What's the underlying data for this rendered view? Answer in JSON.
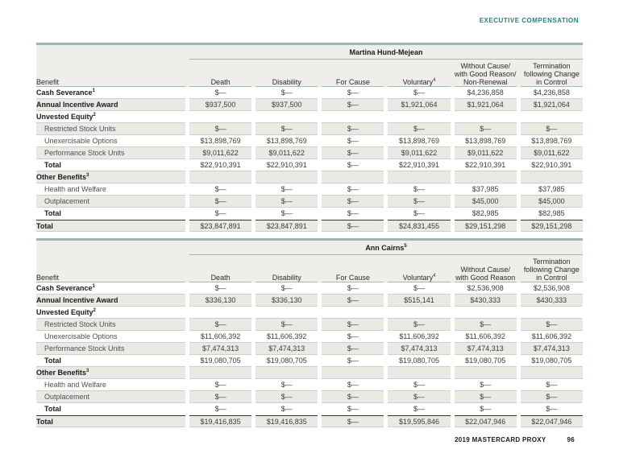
{
  "page": {
    "section_label": "EXECUTIVE COMPENSATION",
    "footer": {
      "proxy_label": "2019 MASTERCARD PROXY",
      "page_number": "96"
    }
  },
  "colors": {
    "accent_teal": "#2a7d80",
    "table_top_border": "#9bb8b5",
    "row_line": "#c0d5d2",
    "shaded_row": "#eae9e4",
    "header_background": "#efeeea"
  },
  "benefit_column_header": "Benefit",
  "tables": [
    {
      "person": "Martina Hund-Mejean",
      "person_sup": "",
      "columns": [
        {
          "lines": [
            "Death"
          ],
          "sup": ""
        },
        {
          "lines": [
            "Disability"
          ],
          "sup": ""
        },
        {
          "lines": [
            "For Cause"
          ],
          "sup": ""
        },
        {
          "lines": [
            "Voluntary"
          ],
          "sup": "4"
        },
        {
          "lines": [
            "Without Cause/",
            "with Good Reason/",
            "Non-Renewal"
          ],
          "sup": ""
        },
        {
          "lines": [
            "Termination",
            "following Change",
            "in Control"
          ],
          "sup": ""
        }
      ],
      "rows": [
        {
          "label": "Cash Severance",
          "sup": "1",
          "bold": true,
          "indent": false,
          "shaded": false,
          "grand": false,
          "values": [
            "$—",
            "$—",
            "$—",
            "$—",
            "$4,236,858",
            "$4,236,858"
          ]
        },
        {
          "label": "Annual Incentive Award",
          "sup": "",
          "bold": true,
          "indent": false,
          "shaded": true,
          "grand": false,
          "values": [
            "$937,500",
            "$937,500",
            "$—",
            "$1,921,064",
            "$1,921,064",
            "$1,921,064"
          ]
        },
        {
          "label": "Unvested Equity",
          "sup": "2",
          "bold": true,
          "indent": false,
          "shaded": false,
          "grand": false,
          "values": [
            "",
            "",
            "",
            "",
            "",
            ""
          ]
        },
        {
          "label": "Restricted Stock Units",
          "sup": "",
          "bold": false,
          "indent": true,
          "shaded": true,
          "grand": false,
          "values": [
            "$—",
            "$—",
            "$—",
            "$—",
            "$—",
            "$—"
          ]
        },
        {
          "label": "Unexercisable Options",
          "sup": "",
          "bold": false,
          "indent": true,
          "shaded": false,
          "grand": false,
          "values": [
            "$13,898,769",
            "$13,898,769",
            "$—",
            "$13,898,769",
            "$13,898,769",
            "$13,898,769"
          ]
        },
        {
          "label": "Performance Stock Units",
          "sup": "",
          "bold": false,
          "indent": true,
          "shaded": true,
          "grand": false,
          "values": [
            "$9,011,622",
            "$9,011,622",
            "$—",
            "$9,011,622",
            "$9,011,622",
            "$9,011,622"
          ]
        },
        {
          "label": "Total",
          "sup": "",
          "bold": true,
          "indent": true,
          "shaded": false,
          "grand": false,
          "values": [
            "$22,910,391",
            "$22,910,391",
            "$—",
            "$22,910,391",
            "$22,910,391",
            "$22,910,391"
          ]
        },
        {
          "label": "Other Benefits",
          "sup": "3",
          "bold": true,
          "indent": false,
          "shaded": true,
          "grand": false,
          "values": [
            "",
            "",
            "",
            "",
            "",
            ""
          ]
        },
        {
          "label": "Health and Welfare",
          "sup": "",
          "bold": false,
          "indent": true,
          "shaded": false,
          "grand": false,
          "values": [
            "$—",
            "$—",
            "$—",
            "$—",
            "$37,985",
            "$37,985"
          ]
        },
        {
          "label": "Outplacement",
          "sup": "",
          "bold": false,
          "indent": true,
          "shaded": true,
          "grand": false,
          "values": [
            "$—",
            "$—",
            "$—",
            "$—",
            "$45,000",
            "$45,000"
          ]
        },
        {
          "label": "Total",
          "sup": "",
          "bold": true,
          "indent": true,
          "shaded": false,
          "grand": false,
          "values": [
            "$—",
            "$—",
            "$—",
            "$—",
            "$82,985",
            "$82,985"
          ]
        },
        {
          "label": "Total",
          "sup": "",
          "bold": true,
          "indent": false,
          "shaded": true,
          "grand": true,
          "values": [
            "$23,847,891",
            "$23,847,891",
            "$—",
            "$24,831,455",
            "$29,151,298",
            "$29,151,298"
          ]
        }
      ]
    },
    {
      "person": "Ann Cairns",
      "person_sup": "5",
      "columns": [
        {
          "lines": [
            "Death"
          ],
          "sup": ""
        },
        {
          "lines": [
            "Disability"
          ],
          "sup": ""
        },
        {
          "lines": [
            "For Cause"
          ],
          "sup": ""
        },
        {
          "lines": [
            "Voluntary"
          ],
          "sup": "4"
        },
        {
          "lines": [
            "Without Cause/",
            "with Good Reason"
          ],
          "sup": ""
        },
        {
          "lines": [
            "Termination",
            "following Change",
            "in Control"
          ],
          "sup": ""
        }
      ],
      "rows": [
        {
          "label": "Cash Severance",
          "sup": "1",
          "bold": true,
          "indent": false,
          "shaded": false,
          "grand": false,
          "values": [
            "$—",
            "$—",
            "$—",
            "$—",
            "$2,536,908",
            "$2,536,908"
          ]
        },
        {
          "label": "Annual Incentive Award",
          "sup": "",
          "bold": true,
          "indent": false,
          "shaded": true,
          "grand": false,
          "values": [
            "$336,130",
            "$336,130",
            "$—",
            "$515,141",
            "$430,333",
            "$430,333"
          ]
        },
        {
          "label": "Unvested Equity",
          "sup": "2",
          "bold": true,
          "indent": false,
          "shaded": false,
          "grand": false,
          "values": [
            "",
            "",
            "",
            "",
            "",
            ""
          ]
        },
        {
          "label": "Restricted Stock Units",
          "sup": "",
          "bold": false,
          "indent": true,
          "shaded": true,
          "grand": false,
          "values": [
            "$—",
            "$—",
            "$—",
            "$—",
            "$—",
            "$—"
          ]
        },
        {
          "label": "Unexercisable Options",
          "sup": "",
          "bold": false,
          "indent": true,
          "shaded": false,
          "grand": false,
          "values": [
            "$11,606,392",
            "$11,606,392",
            "$—",
            "$11,606,392",
            "$11,606,392",
            "$11,606,392"
          ]
        },
        {
          "label": "Performance Stock Units",
          "sup": "",
          "bold": false,
          "indent": true,
          "shaded": true,
          "grand": false,
          "values": [
            "$7,474,313",
            "$7,474,313",
            "$—",
            "$7,474,313",
            "$7,474,313",
            "$7,474,313"
          ]
        },
        {
          "label": "Total",
          "sup": "",
          "bold": true,
          "indent": true,
          "shaded": false,
          "grand": false,
          "values": [
            "$19,080,705",
            "$19,080,705",
            "$—",
            "$19,080,705",
            "$19,080,705",
            "$19,080,705"
          ]
        },
        {
          "label": "Other Benefits",
          "sup": "3",
          "bold": true,
          "indent": false,
          "shaded": true,
          "grand": false,
          "values": [
            "",
            "",
            "",
            "",
            "",
            ""
          ]
        },
        {
          "label": "Health and Welfare",
          "sup": "",
          "bold": false,
          "indent": true,
          "shaded": false,
          "grand": false,
          "values": [
            "$—",
            "$—",
            "$—",
            "$—",
            "$—",
            "$—"
          ]
        },
        {
          "label": "Outplacement",
          "sup": "",
          "bold": false,
          "indent": true,
          "shaded": true,
          "grand": false,
          "values": [
            "$—",
            "$—",
            "$—",
            "$—",
            "$—",
            "$—"
          ]
        },
        {
          "label": "Total",
          "sup": "",
          "bold": true,
          "indent": true,
          "shaded": false,
          "grand": false,
          "values": [
            "$—",
            "$—",
            "$—",
            "$—",
            "$—",
            "$—"
          ]
        },
        {
          "label": "Total",
          "sup": "",
          "bold": true,
          "indent": false,
          "shaded": true,
          "grand": true,
          "values": [
            "$19,416,835",
            "$19,416,835",
            "$—",
            "$19,595,846",
            "$22,047,946",
            "$22,047,946"
          ]
        }
      ]
    }
  ]
}
